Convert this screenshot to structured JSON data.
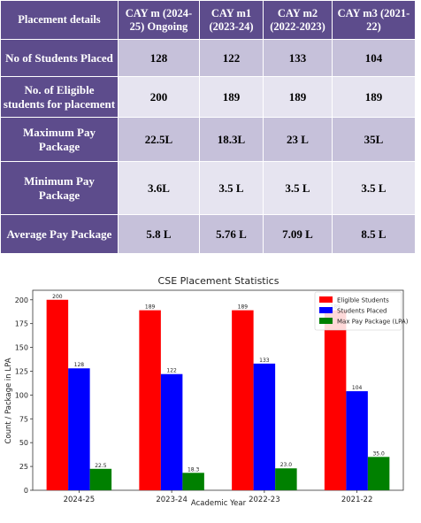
{
  "table": {
    "header": [
      "Placement details",
      "CAY m (2024-25) Ongoing",
      "CAY m1 (2023-24)",
      "CAY m2 (2022-2023)",
      "CAY m3 (2021-22)"
    ],
    "rows": [
      {
        "label": "No of Students Placed",
        "values": [
          "128",
          "122",
          "133",
          "104"
        ]
      },
      {
        "label": "No. of Eligible students for placement",
        "values": [
          "200",
          "189",
          "189",
          "189"
        ]
      },
      {
        "label": "Maximum Pay Package",
        "values": [
          "22.5L",
          "18.3L",
          "23 L",
          "35L"
        ]
      },
      {
        "label": "Minimum Pay Package",
        "values": [
          "3.6L",
          "3.5 L",
          "3.5 L",
          "3.5 L"
        ]
      },
      {
        "label": "Average Pay Package",
        "values": [
          "5.8 L",
          "5.76 L",
          "7.09 L",
          "8.5 L"
        ]
      }
    ]
  },
  "chart_data": {
    "type": "bar",
    "title": "CSE Placement Statistics",
    "xlabel": "Academic Year",
    "ylabel": "Count / Package in LPA",
    "categories": [
      "2024-25",
      "2023-24",
      "2022-23",
      "2021-22"
    ],
    "series": [
      {
        "name": "Eligible Students",
        "values": [
          200,
          189,
          189,
          189
        ],
        "labels": [
          "200",
          "189",
          "189",
          "189"
        ],
        "color": "#ff0000"
      },
      {
        "name": "Students Placed",
        "values": [
          128,
          122,
          133,
          104
        ],
        "labels": [
          "128",
          "122",
          "133",
          "104"
        ],
        "color": "#0000ff"
      },
      {
        "name": "Max Pay Package (LPA)",
        "values": [
          22.5,
          18.3,
          23.0,
          35.0
        ],
        "labels": [
          "22.5",
          "18.3",
          "23.0",
          "35.0"
        ],
        "color": "#008000"
      }
    ],
    "ylim": [
      0,
      210
    ],
    "yticks": [
      "0",
      "25",
      "50",
      "75",
      "100",
      "125",
      "150",
      "175",
      "200"
    ],
    "legend": "top-right",
    "grid": false
  }
}
